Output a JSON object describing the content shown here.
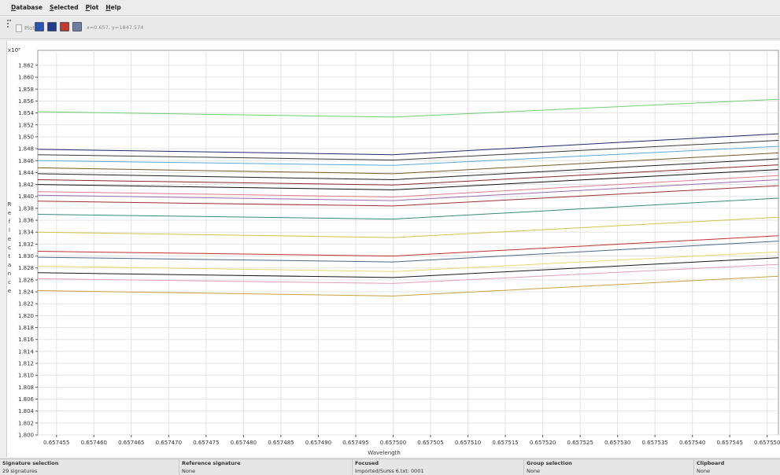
{
  "menu": {
    "items": [
      {
        "label": "Database",
        "mnemonic": "D"
      },
      {
        "label": "Selected",
        "mnemonic": "S"
      },
      {
        "label": "Plot",
        "mnemonic": "P"
      },
      {
        "label": "Help",
        "mnemonic": "H"
      }
    ]
  },
  "toolbar": {
    "plot_label": "Plot",
    "buttons": [
      {
        "icon": "save-icon",
        "color": "#2a55b0"
      },
      {
        "icon": "print-icon",
        "color": "#1f3d8a"
      },
      {
        "icon": "export-icon",
        "color": "#c0392b"
      },
      {
        "icon": "grid-icon",
        "color": "#6b7fa0"
      }
    ],
    "coords_readout": "x=0.657, y=1847.574"
  },
  "chart_data": {
    "type": "line",
    "y_multiplier": "x10³",
    "xlabel": "Wavelength",
    "ylabel": "Reflectance",
    "grid": true,
    "xlim": [
      0.6574525,
      0.6575515
    ],
    "ylim": [
      1.8,
      1.8645
    ],
    "x_ticks": [
      {
        "label": "0.657455",
        "value": 0.657455
      },
      {
        "label": "0.657460",
        "value": 0.65746
      },
      {
        "label": "0.657465",
        "value": 0.657465
      },
      {
        "label": "0.657470",
        "value": 0.65747
      },
      {
        "label": "0.657475",
        "value": 0.657475
      },
      {
        "label": "0.657480",
        "value": 0.65748
      },
      {
        "label": "0.657485",
        "value": 0.657485
      },
      {
        "label": "0.657490",
        "value": 0.65749
      },
      {
        "label": "0.657495",
        "value": 0.657495
      },
      {
        "label": "0.657500",
        "value": 0.6575
      },
      {
        "label": "0.657505",
        "value": 0.657505
      },
      {
        "label": "0.657510",
        "value": 0.65751
      },
      {
        "label": "0.657515",
        "value": 0.657515
      },
      {
        "label": "0.657520",
        "value": 0.65752
      },
      {
        "label": "0.657525",
        "value": 0.657525
      },
      {
        "label": "0.657530",
        "value": 0.65753
      },
      {
        "label": "0.657535",
        "value": 0.657535
      },
      {
        "label": "0.657540",
        "value": 0.65754
      },
      {
        "label": "0.657545",
        "value": 0.657545
      },
      {
        "label": "0.657550",
        "value": 0.65755
      }
    ],
    "y_ticks": [
      {
        "label": "1.800",
        "value": 1.8
      },
      {
        "label": "1.802",
        "value": 1.802
      },
      {
        "label": "1.804",
        "value": 1.804
      },
      {
        "label": "1.806",
        "value": 1.806
      },
      {
        "label": "1.808",
        "value": 1.808
      },
      {
        "label": "1.810",
        "value": 1.81
      },
      {
        "label": "1.812",
        "value": 1.812
      },
      {
        "label": "1.814",
        "value": 1.814
      },
      {
        "label": "1.816",
        "value": 1.816
      },
      {
        "label": "1.818",
        "value": 1.818
      },
      {
        "label": "1.820",
        "value": 1.82
      },
      {
        "label": "1.822",
        "value": 1.822
      },
      {
        "label": "1.824",
        "value": 1.824
      },
      {
        "label": "1.826",
        "value": 1.826
      },
      {
        "label": "1.828",
        "value": 1.828
      },
      {
        "label": "1.830",
        "value": 1.83
      },
      {
        "label": "1.832",
        "value": 1.832
      },
      {
        "label": "1.834",
        "value": 1.834
      },
      {
        "label": "1.836",
        "value": 1.836
      },
      {
        "label": "1.838",
        "value": 1.838
      },
      {
        "label": "1.840",
        "value": 1.84
      },
      {
        "label": "1.842",
        "value": 1.842
      },
      {
        "label": "1.844",
        "value": 1.844
      },
      {
        "label": "1.846",
        "value": 1.846
      },
      {
        "label": "1.848",
        "value": 1.848
      },
      {
        "label": "1.850",
        "value": 1.85
      },
      {
        "label": "1.852",
        "value": 1.852
      },
      {
        "label": "1.854",
        "value": 1.854
      },
      {
        "label": "1.856",
        "value": 1.856
      },
      {
        "label": "1.858",
        "value": 1.858
      },
      {
        "label": "1.860",
        "value": 1.86
      },
      {
        "label": "1.862",
        "value": 1.862
      }
    ],
    "x": [
      0.6574525,
      0.6575,
      0.6575515
    ],
    "series": [
      {
        "color": "#6fcf6f",
        "values": [
          1.8542,
          1.8533,
          1.8563
        ]
      },
      {
        "color": "#1f2a6b",
        "values": [
          1.8479,
          1.847,
          1.8505
        ]
      },
      {
        "color": "#3a3a3a",
        "values": [
          1.847,
          1.8461,
          1.8494
        ]
      },
      {
        "color": "#5aa9d6",
        "values": [
          1.846,
          1.8452,
          1.8484
        ]
      },
      {
        "color": "#7a5a2a",
        "values": [
          1.8448,
          1.8438,
          1.8473
        ]
      },
      {
        "color": "#222222",
        "values": [
          1.8438,
          1.8428,
          1.8463
        ]
      },
      {
        "color": "#8a2a2a",
        "values": [
          1.8428,
          1.8419,
          1.8453
        ]
      },
      {
        "color": "#111111",
        "values": [
          1.842,
          1.8411,
          1.8445
        ]
      },
      {
        "color": "#e07a8a",
        "values": [
          1.8408,
          1.8399,
          1.8435
        ]
      },
      {
        "color": "#9a6ab0",
        "values": [
          1.8402,
          1.8393,
          1.8428
        ]
      },
      {
        "color": "#a03030",
        "values": [
          1.8392,
          1.8384,
          1.8418
        ]
      },
      {
        "color": "#3a8a7a",
        "values": [
          1.837,
          1.8362,
          1.8397
        ]
      },
      {
        "color": "#d4c24a",
        "values": [
          1.834,
          1.8331,
          1.8365
        ]
      },
      {
        "color": "#c03030",
        "values": [
          1.8308,
          1.83,
          1.8334
        ]
      },
      {
        "color": "#4a6a8a",
        "values": [
          1.8298,
          1.829,
          1.8325
        ]
      },
      {
        "color": "#e8d870",
        "values": [
          1.8283,
          1.8274,
          1.8307
        ]
      },
      {
        "color": "#1a1a1a",
        "values": [
          1.8272,
          1.8264,
          1.8297
        ]
      },
      {
        "color": "#e0a0b0",
        "values": [
          1.8262,
          1.8254,
          1.8286
        ]
      },
      {
        "color": "#c8a040",
        "values": [
          1.8242,
          1.8233,
          1.8266
        ]
      }
    ]
  },
  "status": {
    "columns": [
      {
        "header": "Signature selection",
        "value": "29 signatures"
      },
      {
        "header": "Reference signature",
        "value": "None"
      },
      {
        "header": "Focused",
        "value": "Imported/Surss 6.txt: 0001"
      },
      {
        "header": "Group selection",
        "value": "None"
      },
      {
        "header": "Clipboard",
        "value": "None"
      }
    ]
  }
}
